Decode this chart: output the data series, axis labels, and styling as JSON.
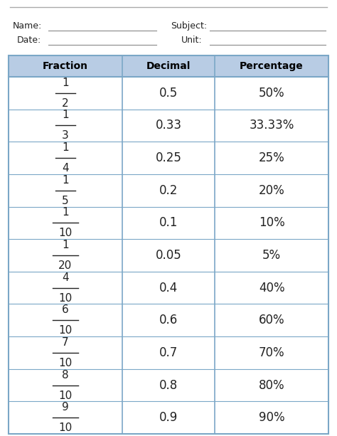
{
  "header": [
    "Fraction",
    "Decimal",
    "Percentage"
  ],
  "fraction_numerators": [
    "1",
    "1",
    "1",
    "1",
    "1",
    "1",
    "4",
    "6",
    "7",
    "8",
    "9"
  ],
  "fraction_denominators": [
    "2",
    "3",
    "4",
    "5",
    "10",
    "20",
    "10",
    "10",
    "10",
    "10",
    "10"
  ],
  "decimals": [
    "0.5",
    "0.33",
    "0.25",
    "0.2",
    "0.1",
    "0.05",
    "0.4",
    "0.6",
    "0.7",
    "0.8",
    "0.9"
  ],
  "percentages": [
    "50%",
    "33.33%",
    "25%",
    "20%",
    "10%",
    "5%",
    "40%",
    "60%",
    "70%",
    "80%",
    "90%"
  ],
  "header_bg": "#b8cce4",
  "border_color": "#7ba7c7",
  "text_color": "#222222",
  "header_text_color": "#000000",
  "background_color": "#ffffff",
  "figsize": [
    4.74,
    6.13
  ],
  "dpi": 100
}
